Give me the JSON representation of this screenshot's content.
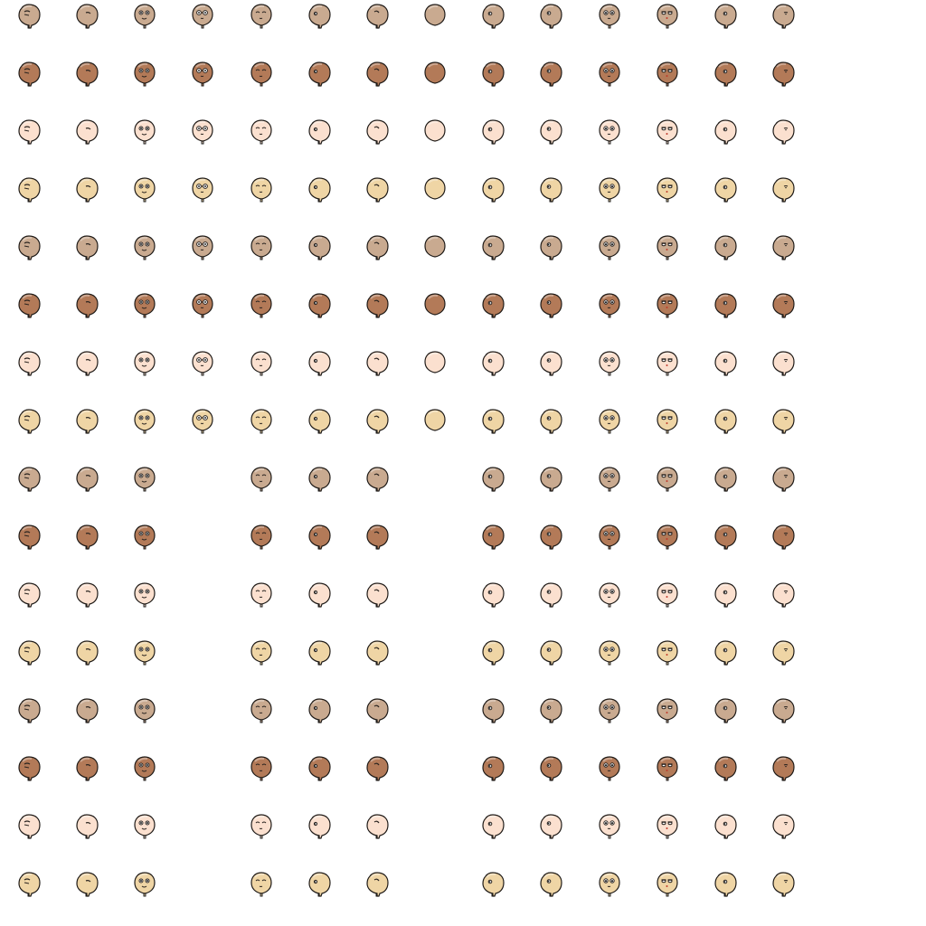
{
  "sheet": {
    "background": "#ffffff",
    "columns": 14,
    "rows": 16,
    "skin_tones": [
      "#c9aa90",
      "#b37a58",
      "#fbe0cf",
      "#efd5a5"
    ],
    "columns_views": [
      "side-wink",
      "three-quarter-closed",
      "front-smile",
      "front-glasses",
      "front-closed",
      "side-left",
      "side-wink-right",
      "back",
      "side-left-2",
      "three-quarter",
      "front-wide",
      "front-lashes",
      "side-right",
      "side-right-2"
    ],
    "empty_cells": {
      "rows": [
        8,
        9,
        10,
        11,
        12,
        13,
        14,
        15
      ],
      "columns": [
        3,
        7
      ]
    }
  }
}
